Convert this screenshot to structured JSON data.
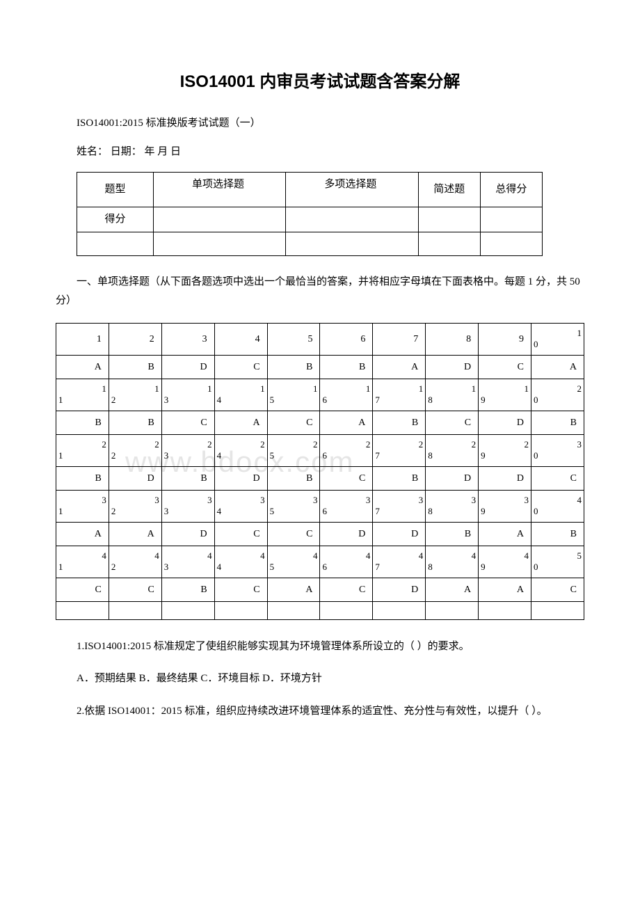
{
  "title": "ISO14001 内审员考试试题含答案分解",
  "subtitle": "ISO14001:2015 标准换版考试试题（一）",
  "nameline": "姓名：   日期：  年 月  日",
  "watermark": "www.bdocx.com",
  "score_table": {
    "headers": [
      "题型",
      "单项选择题",
      "多项选择题",
      "简述题",
      "总得分"
    ],
    "row_label": "得分"
  },
  "section1_instr": "一、单项选择题（从下面各题选项中选出一个最恰当的答案，并将相应字母填在下面表格中。每题 1 分，共 50 分）",
  "answers": {
    "nums": [
      [
        "1",
        "2",
        "3",
        "4",
        "5",
        "6",
        "7",
        "8",
        "9",
        "10"
      ],
      [
        "11",
        "12",
        "13",
        "14",
        "15",
        "16",
        "17",
        "18",
        "19",
        "20"
      ],
      [
        "21",
        "22",
        "23",
        "24",
        "25",
        "26",
        "27",
        "28",
        "29",
        "30"
      ],
      [
        "31",
        "32",
        "33",
        "34",
        "35",
        "36",
        "37",
        "38",
        "39",
        "40"
      ],
      [
        "41",
        "42",
        "43",
        "44",
        "45",
        "46",
        "47",
        "48",
        "49",
        "50"
      ]
    ],
    "vals": [
      [
        "A",
        "B",
        "D",
        "C",
        "B",
        "B",
        "A",
        "D",
        "C",
        "A"
      ],
      [
        "B",
        "B",
        "C",
        "A",
        "C",
        "A",
        "B",
        "C",
        "D",
        "B"
      ],
      [
        "B",
        "D",
        "B",
        "D",
        "B",
        "C",
        "B",
        "D",
        "D",
        "C"
      ],
      [
        "A",
        "A",
        "D",
        "C",
        "C",
        "D",
        "D",
        "B",
        "A",
        "B"
      ],
      [
        "C",
        "C",
        "B",
        "C",
        "A",
        "C",
        "D",
        "A",
        "A",
        "C"
      ]
    ]
  },
  "q1": "1.ISO14001:2015 标准规定了使组织能够实现其为环境管理体系所设立的（ ）的要求。",
  "q1_opts": "A．预期结果 B．最终结果 C．环境目标 D．环境方针",
  "q2": "2.依据 ISO14001：2015 标准，组织应持续改进环境管理体系的适宜性、充分性与有效性，以提升（ ）。"
}
